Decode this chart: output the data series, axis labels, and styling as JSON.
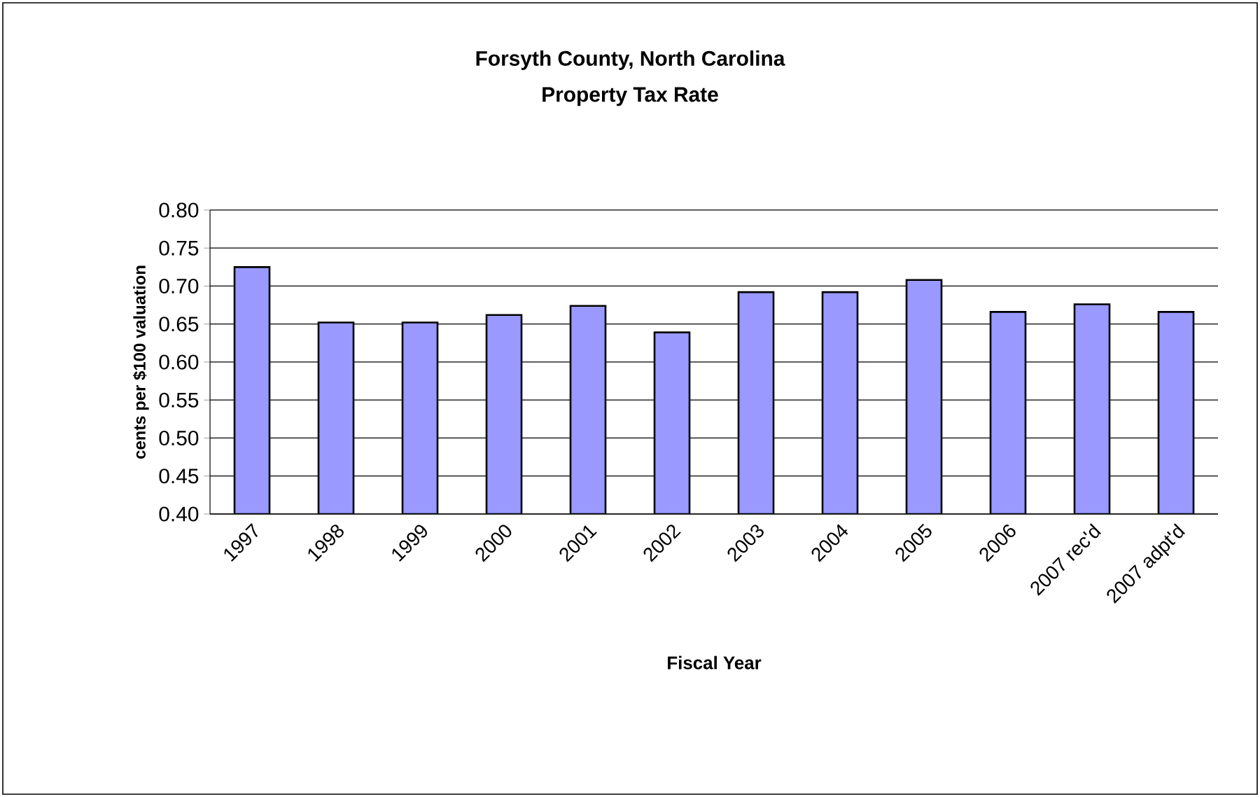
{
  "chart_data": {
    "type": "bar",
    "title": "Forsyth County, North Carolina",
    "subtitle": "Property Tax Rate",
    "xlabel": "Fiscal Year",
    "ylabel": "cents per $100 valuation",
    "categories": [
      "1997",
      "1998",
      "1999",
      "2000",
      "2001",
      "2002",
      "2003",
      "2004",
      "2005",
      "2006",
      "2007 rec'd",
      "2007 adpt'd"
    ],
    "values": [
      0.725,
      0.652,
      0.652,
      0.662,
      0.674,
      0.639,
      0.692,
      0.692,
      0.708,
      0.666,
      0.676,
      0.666
    ],
    "color": "#9999ff",
    "ylim": [
      0.4,
      0.8
    ],
    "yticks": [
      {
        "value": 0.4,
        "label": "0.40"
      },
      {
        "value": 0.45,
        "label": "0.45"
      },
      {
        "value": 0.5,
        "label": "0.50"
      },
      {
        "value": 0.55,
        "label": "0.55"
      },
      {
        "value": 0.6,
        "label": "0.60"
      },
      {
        "value": 0.65,
        "label": "0.65"
      },
      {
        "value": 0.7,
        "label": "0.70"
      },
      {
        "value": 0.75,
        "label": "0.75"
      },
      {
        "value": 0.8,
        "label": "0.80"
      }
    ],
    "grid": "y"
  }
}
